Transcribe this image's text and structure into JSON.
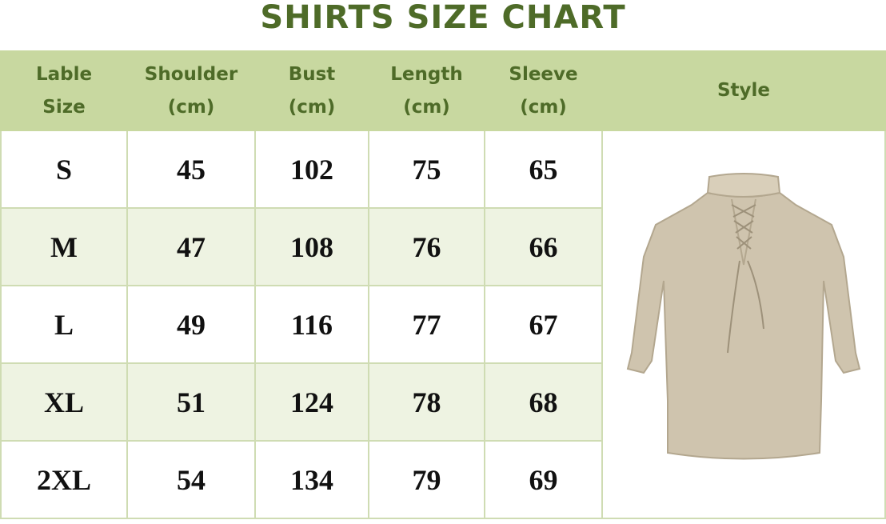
{
  "title": "SHIRTS SIZE CHART",
  "columns": [
    {
      "line1": "Lable",
      "line2": "Size"
    },
    {
      "line1": "Shoulder",
      "line2": "(cm)"
    },
    {
      "line1": "Bust",
      "line2": "(cm)"
    },
    {
      "line1": "Length",
      "line2": "(cm)"
    },
    {
      "line1": "Sleeve",
      "line2": "(cm)"
    },
    {
      "line1": "Style",
      "line2": ""
    }
  ],
  "rows": [
    [
      "S",
      "45",
      "102",
      "75",
      "65"
    ],
    [
      "M",
      "47",
      "108",
      "76",
      "66"
    ],
    [
      "L",
      "49",
      "116",
      "77",
      "67"
    ],
    [
      "XL",
      "51",
      "124",
      "78",
      "68"
    ],
    [
      "2XL",
      "54",
      "134",
      "79",
      "69"
    ]
  ],
  "colors": {
    "header_bg": "#c8d8a0",
    "header_text": "#4e6b28",
    "alt_row": "#eef3e2",
    "shirt": "#cfc4ae"
  }
}
